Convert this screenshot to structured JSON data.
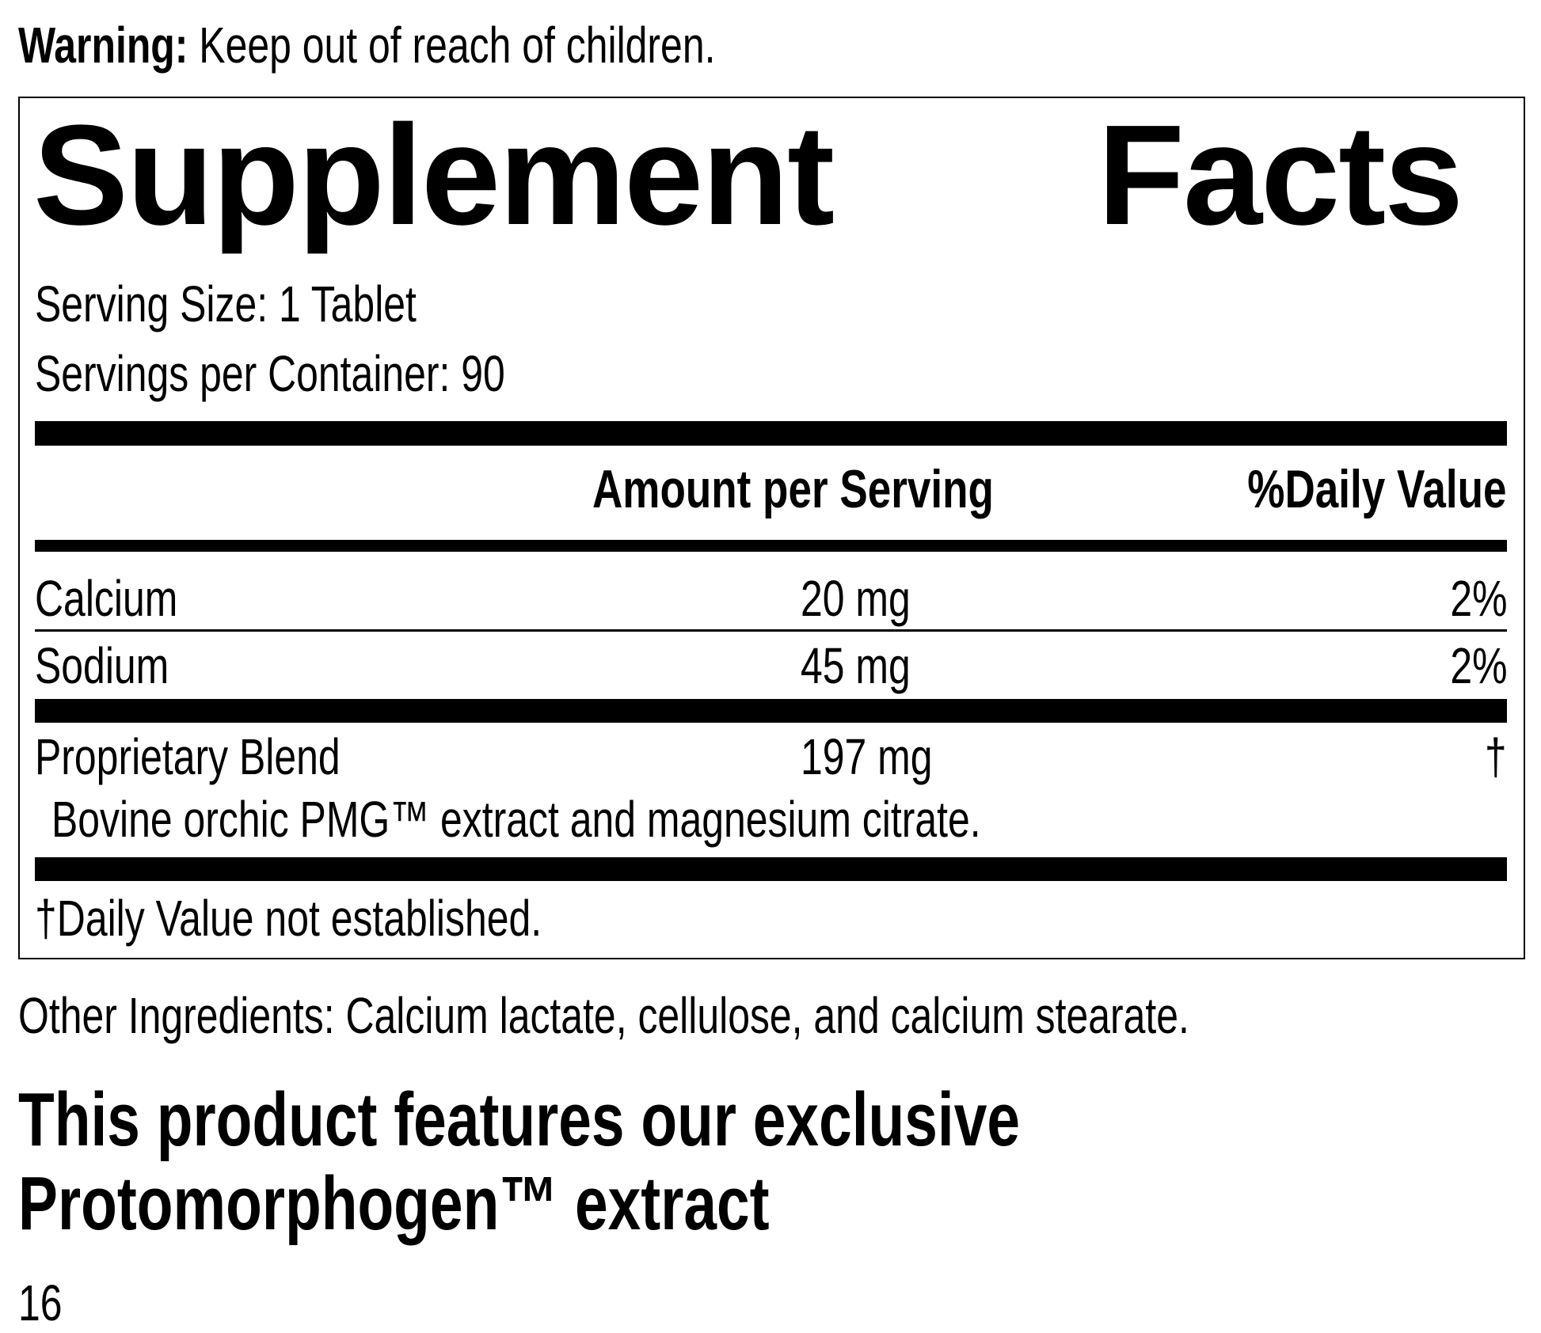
{
  "warning": {
    "label": "Warning:",
    "text": "Keep out of reach of children."
  },
  "facts": {
    "title_word1": "Supplement",
    "title_word2": "Facts",
    "serving_size": "Serving Size: 1 Tablet",
    "servings_per_container": "Servings per Container: 90",
    "headers": {
      "amount": "Amount per Serving",
      "daily_value": "%Daily Value"
    },
    "rows": [
      {
        "name": "Calcium",
        "amount": "20 mg",
        "dv": "2%"
      },
      {
        "name": "Sodium",
        "amount": "45 mg",
        "dv": "2%"
      },
      {
        "name": "Proprietary Blend",
        "amount": "197 mg",
        "dv": "†"
      }
    ],
    "blend_description": "Bovine orchic PMG™ extract and magnesium citrate.",
    "footnote": "†Daily Value not established."
  },
  "other_ingredients": "Other Ingredients: Calcium lactate, cellulose, and calcium stearate.",
  "feature_line1": "This product features our exclusive",
  "feature_line2": "Protomorphogen™ extract",
  "page_number": "16"
}
